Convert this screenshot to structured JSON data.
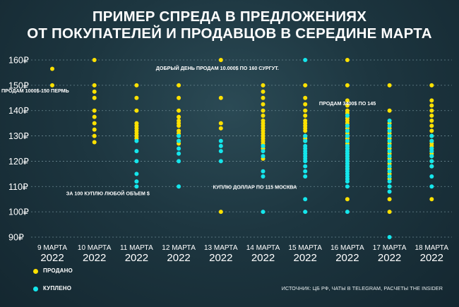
{
  "title_line1": "ПРИМЕР СПРЕДА В ПРЕДЛОЖЕНИЯХ",
  "title_line2": "ОТ ПОКУПАТЕЛЕЙ И ПРОДАВЦОВ В СЕРЕДИНЕ МАРТА",
  "legend": {
    "sold": "ПРОДАНО",
    "bought": "КУПЛЕНО"
  },
  "source": "ИСТОЧНИК: ЦБ РФ, ЧАТЫ В TELEGRAM, РАСЧЕТЫ THE INSIDER",
  "colors": {
    "sold": "#ffe100",
    "bought": "#14e6ec",
    "grid": "#6a8690",
    "text": "#ffffff"
  },
  "chart_data": {
    "type": "scatter",
    "ylim": [
      90,
      160
    ],
    "yticks": [
      90,
      100,
      110,
      120,
      130,
      140,
      150,
      160
    ],
    "ytick_labels": [
      "90₽",
      "100₽",
      "110₽",
      "120₽",
      "130₽",
      "140₽",
      "150₽",
      "160₽"
    ],
    "grid": true,
    "categories": [
      [
        "9 МАРТА",
        "2022"
      ],
      [
        "10 МАРТА",
        "2022"
      ],
      [
        "11 МАРТА",
        "2022"
      ],
      [
        "12 МАРТА",
        "2022"
      ],
      [
        "13 МАРТА",
        "2022"
      ],
      [
        "14 МАРТА",
        "2022"
      ],
      [
        "15 МАРТА",
        "2022"
      ],
      [
        "16 МАРТА",
        "2022"
      ],
      [
        "17 МАРТА",
        "2022"
      ],
      [
        "18 МАРТА",
        "2022"
      ]
    ],
    "series": [
      {
        "name": "ПРОДАНО",
        "values": [
          [
            156.5,
            150
          ],
          [
            160,
            150,
            147.5,
            145,
            140,
            137.5,
            135,
            132.5,
            130,
            127.5
          ],
          [
            150,
            145,
            140,
            135,
            134,
            133,
            132,
            131,
            130,
            129
          ],
          [
            150,
            145,
            140,
            137.5,
            136,
            135,
            134,
            132,
            131,
            128,
            127
          ],
          [
            160,
            145,
            135,
            133,
            100
          ],
          [
            150,
            147.5,
            145,
            142.5,
            140,
            138,
            136,
            135,
            134,
            133,
            132,
            131,
            130,
            129,
            128,
            127,
            126,
            125,
            121
          ],
          [
            150,
            145,
            142.5,
            140,
            138,
            136,
            135,
            134,
            133,
            132,
            130,
            129,
            128
          ],
          [
            160,
            150,
            144,
            142,
            140,
            139,
            138,
            137,
            136,
            135,
            134,
            133,
            132,
            131,
            130,
            129,
            128,
            127,
            126,
            125,
            124,
            123,
            122,
            121,
            120,
            119,
            118,
            117,
            105
          ],
          [
            150,
            140,
            135,
            133,
            132,
            131,
            130,
            129,
            128,
            127,
            126,
            125,
            124,
            123,
            122,
            121,
            120,
            119,
            118,
            117,
            116,
            115,
            114,
            113,
            110,
            105,
            100
          ],
          [
            150,
            144,
            142,
            140,
            138,
            136,
            134,
            132,
            130,
            128,
            127,
            126,
            125,
            124,
            123,
            122,
            120,
            118,
            105
          ]
        ]
      },
      {
        "name": "КУПЛЕНО",
        "values": [
          [],
          [],
          [
            128,
            124,
            120,
            115,
            112,
            110
          ],
          [
            130,
            128,
            125,
            123,
            120,
            110
          ],
          [
            128,
            126,
            124,
            120
          ],
          [
            126,
            124,
            122,
            116,
            114,
            100
          ],
          [
            160,
            130,
            128,
            126,
            125,
            124,
            123,
            122,
            121,
            120,
            118,
            116,
            114,
            105,
            100
          ],
          [
            138,
            134,
            132,
            130,
            128,
            126,
            125,
            124,
            123,
            122,
            121,
            120,
            119,
            118,
            117,
            116,
            115,
            114,
            113,
            112,
            110,
            100
          ],
          [
            136,
            134,
            132,
            130,
            128,
            126,
            124,
            122,
            120,
            118,
            116,
            114,
            112,
            110,
            108,
            90
          ],
          [
            130,
            128,
            125,
            124,
            122,
            120,
            118,
            114,
            110
          ]
        ]
      }
    ],
    "annotations": [
      {
        "text": "ПРОДАМ 1000$-150 ПЕРМЬ",
        "category": 0,
        "y": 148
      },
      {
        "text": "ДОБРЫЙ ДЕНЬ ПРОДАМ 10.000$ ПО 160 СУРГУТ.",
        "category": 4,
        "y": 157
      },
      {
        "text": "ПРОДАМ 3400$ ПО 145",
        "category": 7,
        "y": 143
      },
      {
        "text": "ЗА 100 КУПЛЮ ЛЮБОЙ ОБЪЕМ $",
        "category": 1,
        "y": 107.5
      },
      {
        "text": "КУПЛЮ ДОЛЛАР ПО 115 МОСКВА",
        "category": 5,
        "y": 110
      }
    ]
  }
}
